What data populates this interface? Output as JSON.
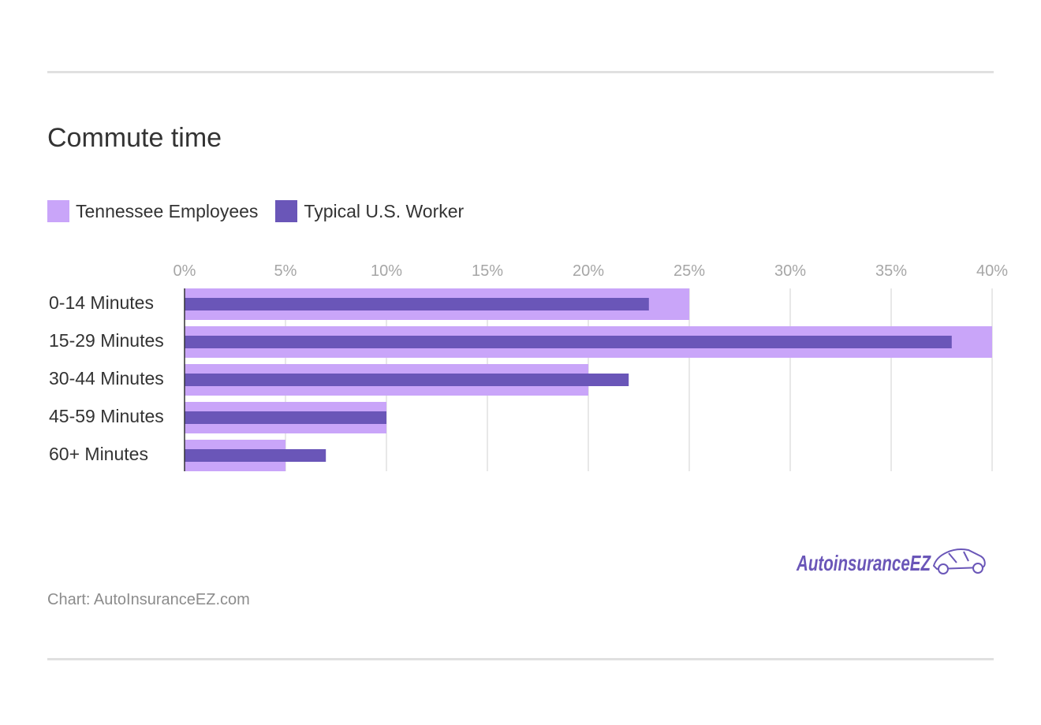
{
  "title": "Commute time",
  "source": "Chart: AutoInsuranceEZ.com",
  "logo_text": "AutoinsuranceEZ",
  "colors": {
    "tennessee": "#c9a5f9",
    "us": "#6a56b8",
    "grid": "#e0e0e0",
    "tick": "#a6a6a6"
  },
  "chart_data": {
    "type": "bar",
    "orientation": "horizontal",
    "categories": [
      "0-14 Minutes",
      "15-29 Minutes",
      "30-44 Minutes",
      "45-59 Minutes",
      "60+ Minutes"
    ],
    "series": [
      {
        "name": "Tennessee Employees",
        "values": [
          25,
          40,
          20,
          10,
          5
        ]
      },
      {
        "name": "Typical U.S. Worker",
        "values": [
          23,
          38,
          22,
          10,
          7
        ]
      }
    ],
    "xlim": [
      0,
      40
    ],
    "x_ticks": [
      "0%",
      "5%",
      "10%",
      "15%",
      "20%",
      "25%",
      "30%",
      "35%",
      "40%"
    ],
    "x_tick_values": [
      0,
      5,
      10,
      15,
      20,
      25,
      30,
      35,
      40
    ],
    "grid": true,
    "legend_position": "top-left"
  }
}
